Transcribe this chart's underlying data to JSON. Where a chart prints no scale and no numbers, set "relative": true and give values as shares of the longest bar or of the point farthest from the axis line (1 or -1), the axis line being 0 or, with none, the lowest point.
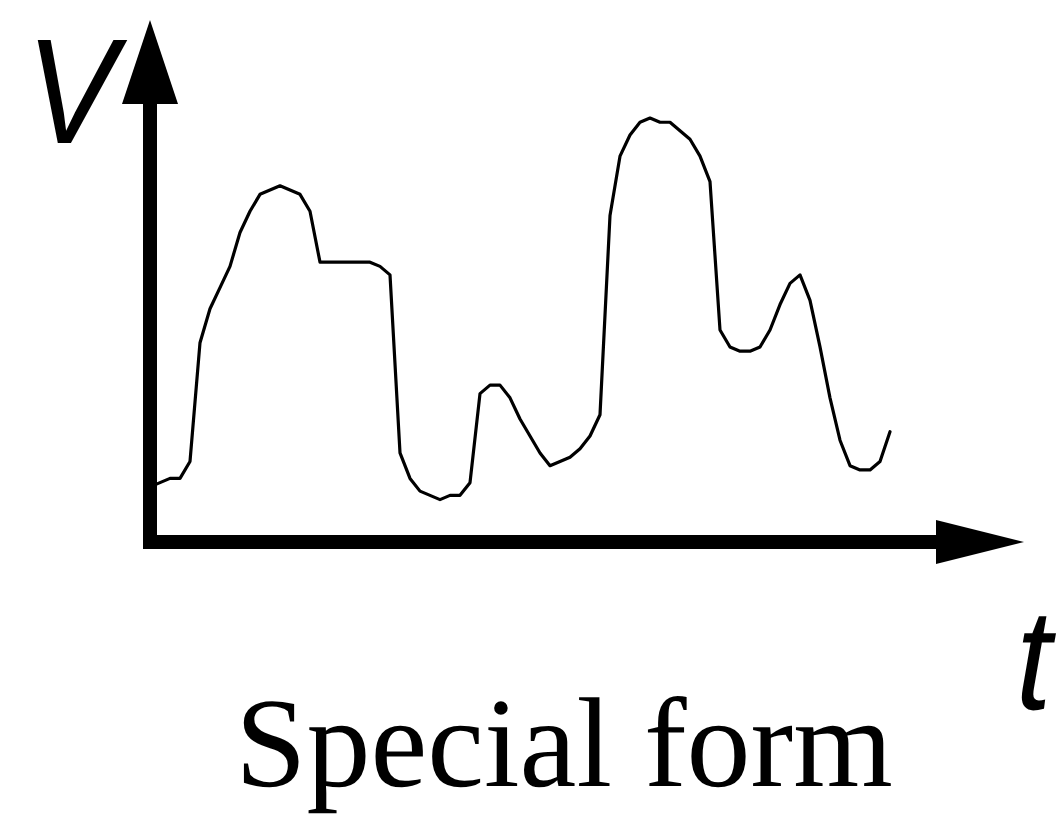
{
  "chart_data": {
    "type": "line",
    "title": "Special form",
    "xlabel": "t",
    "ylabel": "V",
    "relative": true,
    "marker": "none",
    "categories": [
      null,
      null,
      null,
      null,
      null,
      null,
      null,
      null,
      null,
      null,
      null,
      null,
      null,
      null,
      null,
      null,
      null,
      null,
      null,
      null,
      null,
      null,
      null,
      null,
      null,
      null,
      null,
      null,
      null,
      null,
      null,
      null,
      null,
      null,
      null,
      null,
      null,
      null,
      null,
      null,
      null,
      null,
      null,
      null,
      null,
      null,
      null,
      null,
      null,
      null,
      null,
      null,
      null,
      null,
      null,
      null,
      null,
      null,
      null,
      null,
      null,
      null,
      null,
      null,
      null,
      null,
      null,
      null,
      null,
      null,
      null,
      null,
      null,
      null,
      null,
      null,
      null,
      null,
      null,
      null
    ],
    "series": [
      {
        "color": "#000000",
        "values": [
          0.13,
          0.14,
          0.15,
          0.15,
          0.19,
          0.47,
          0.55,
          0.6,
          0.65,
          0.73,
          0.78,
          0.82,
          0.83,
          0.84,
          0.83,
          0.82,
          0.78,
          0.66,
          0.66,
          0.66,
          0.66,
          0.66,
          0.66,
          0.65,
          0.63,
          0.21,
          0.15,
          0.12,
          0.11,
          0.1,
          0.11,
          0.11,
          0.14,
          0.35,
          0.37,
          0.37,
          0.34,
          0.29,
          0.25,
          0.21,
          0.18,
          0.19,
          0.2,
          0.22,
          0.25,
          0.3,
          0.77,
          0.91,
          0.96,
          0.99,
          1,
          0.99,
          0.99,
          0.97,
          0.95,
          0.91,
          0.85,
          0.5,
          0.46,
          0.45,
          0.45,
          0.46,
          0.5,
          0.56,
          0.61,
          0.63,
          0.57,
          0.46,
          0.34,
          0.24,
          0.18,
          0.17,
          0.17,
          0.19,
          0.26,
          null,
          null,
          null,
          null,
          null
        ]
      }
    ]
  }
}
